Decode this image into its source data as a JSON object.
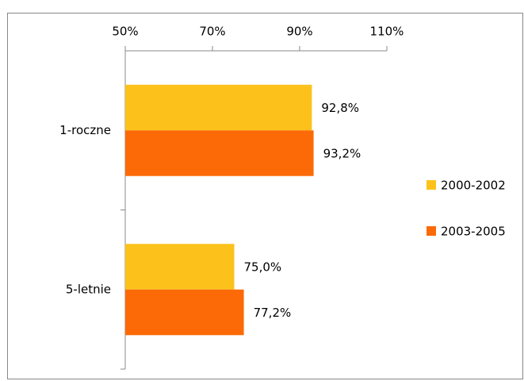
{
  "chart_data": {
    "type": "hbar",
    "categories": [
      "1-roczne",
      "5-letnie"
    ],
    "series": [
      {
        "name": "2000-2002",
        "color": "#fcc21b",
        "values": [
          92.8,
          75.0
        ],
        "value_labels": [
          "92,8%",
          "75,0%"
        ]
      },
      {
        "name": "2003-2005",
        "color": "#fc6a08",
        "values": [
          93.2,
          77.2
        ],
        "value_labels": [
          "93,2%",
          "77,2%"
        ]
      }
    ],
    "xlim": [
      50,
      110
    ],
    "xticks": [
      {
        "value": 50,
        "label": "50%"
      },
      {
        "value": 70,
        "label": "70%"
      },
      {
        "value": 90,
        "label": "90%"
      },
      {
        "value": 110,
        "label": "110%"
      }
    ],
    "legend": "right"
  }
}
